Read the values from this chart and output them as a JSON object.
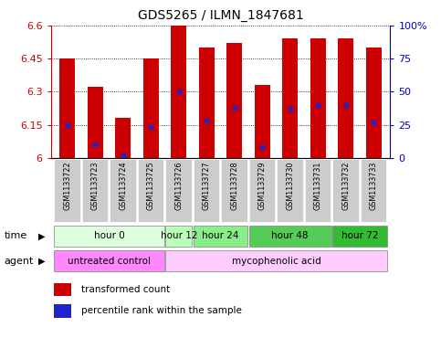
{
  "title": "GDS5265 / ILMN_1847681",
  "samples": [
    "GSM1133722",
    "GSM1133723",
    "GSM1133724",
    "GSM1133725",
    "GSM1133726",
    "GSM1133727",
    "GSM1133728",
    "GSM1133729",
    "GSM1133730",
    "GSM1133731",
    "GSM1133732",
    "GSM1133733"
  ],
  "transformed_counts": [
    6.45,
    6.32,
    6.18,
    6.45,
    6.6,
    6.5,
    6.52,
    6.33,
    6.54,
    6.54,
    6.54,
    6.5
  ],
  "percentile_ranks": [
    25,
    10,
    2,
    23,
    50,
    28,
    38,
    8,
    37,
    40,
    40,
    27
  ],
  "ylim_left": [
    6.0,
    6.6
  ],
  "ylim_right": [
    0,
    100
  ],
  "yticks_left": [
    6.0,
    6.15,
    6.3,
    6.45,
    6.6
  ],
  "ytick_labels_left": [
    "6",
    "6.15",
    "6.3",
    "6.45",
    "6.6"
  ],
  "yticks_right": [
    0,
    25,
    50,
    75,
    100
  ],
  "ytick_labels_right": [
    "0",
    "25",
    "50",
    "75",
    "100%"
  ],
  "bar_color": "#cc0000",
  "dot_color": "#2222cc",
  "bar_bottom": 6.0,
  "time_groups": [
    {
      "label": "hour 0",
      "start": 0,
      "end": 3,
      "color": "#ddffdd"
    },
    {
      "label": "hour 12",
      "start": 4,
      "end": 4,
      "color": "#bbffbb"
    },
    {
      "label": "hour 24",
      "start": 5,
      "end": 6,
      "color": "#88ee88"
    },
    {
      "label": "hour 48",
      "start": 7,
      "end": 9,
      "color": "#55cc55"
    },
    {
      "label": "hour 72",
      "start": 10,
      "end": 11,
      "color": "#33bb33"
    }
  ],
  "agent_groups": [
    {
      "label": "untreated control",
      "start": 0,
      "end": 3,
      "color": "#ff88ff"
    },
    {
      "label": "mycophenolic acid",
      "start": 4,
      "end": 11,
      "color": "#ffccff"
    }
  ],
  "tick_color_left": "#cc0000",
  "tick_color_right": "#0000cc",
  "label_row_bg": "#cccccc",
  "plot_bg": "#ffffff"
}
